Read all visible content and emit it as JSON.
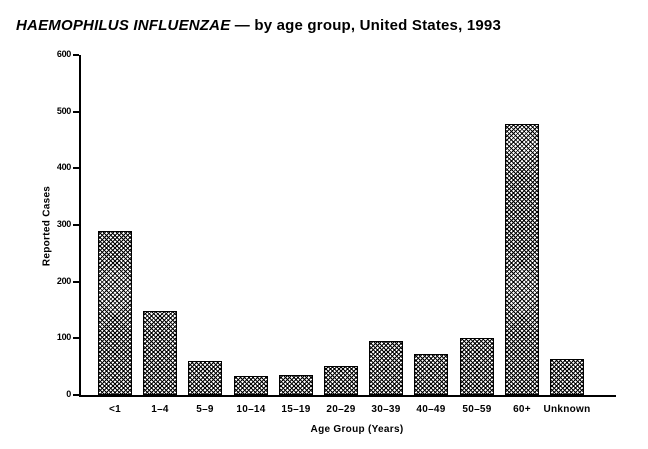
{
  "title": {
    "italic": "HAEMOPHILUS INFLUENZAE",
    "rest": " — by age group, United States, 1993"
  },
  "chart_data": {
    "type": "bar",
    "title": "HAEMOPHILUS INFLUENZAE — by age group, United States, 1993",
    "categories": [
      "<1",
      "1–4",
      "5–9",
      "10–14",
      "15–19",
      "20–29",
      "30–39",
      "40–49",
      "50–59",
      "60+",
      "Unknown"
    ],
    "values": [
      290,
      148,
      60,
      33,
      35,
      52,
      95,
      72,
      101,
      478,
      64
    ],
    "xlabel": "Age Group (Years)",
    "ylabel": "Reported Cases",
    "ylim": [
      0,
      600
    ],
    "yticks": [
      0,
      100,
      200,
      300,
      400,
      500,
      600
    ],
    "grid": false,
    "legend": "none",
    "bar_fill_style": "black diagonal crosshatch on white",
    "colors": {
      "foreground": "#000000",
      "background": "#ffffff"
    }
  }
}
